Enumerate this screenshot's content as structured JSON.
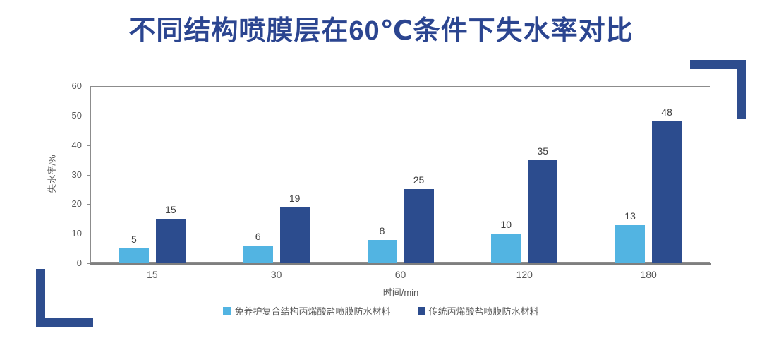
{
  "title": "不同结构喷膜层在60℃条件下失水率对比",
  "chart_data": {
    "type": "bar",
    "categories": [
      "15",
      "30",
      "60",
      "120",
      "180"
    ],
    "series": [
      {
        "name": "免养护复合结构丙烯酸盐喷膜防水材料",
        "color": "#52B4E2",
        "values": [
          5,
          6,
          8,
          10,
          13
        ]
      },
      {
        "name": "传统丙烯酸盐喷膜防水材料",
        "color": "#2C4C8E",
        "values": [
          15,
          19,
          25,
          35,
          48
        ]
      }
    ],
    "xlabel": "时间/min",
    "ylabel": "失水率/%",
    "ylim": [
      0,
      60
    ],
    "yticks": [
      0,
      10,
      20,
      30,
      40,
      50,
      60
    ],
    "grid": false,
    "legend_position": "bottom",
    "data_labels": true
  },
  "colors": {
    "title": "#2B4590",
    "bracket": "#2E4D8E",
    "axis_line": "#7F7F7F",
    "tick_text": "#595959",
    "value_label_text": "#404040"
  }
}
